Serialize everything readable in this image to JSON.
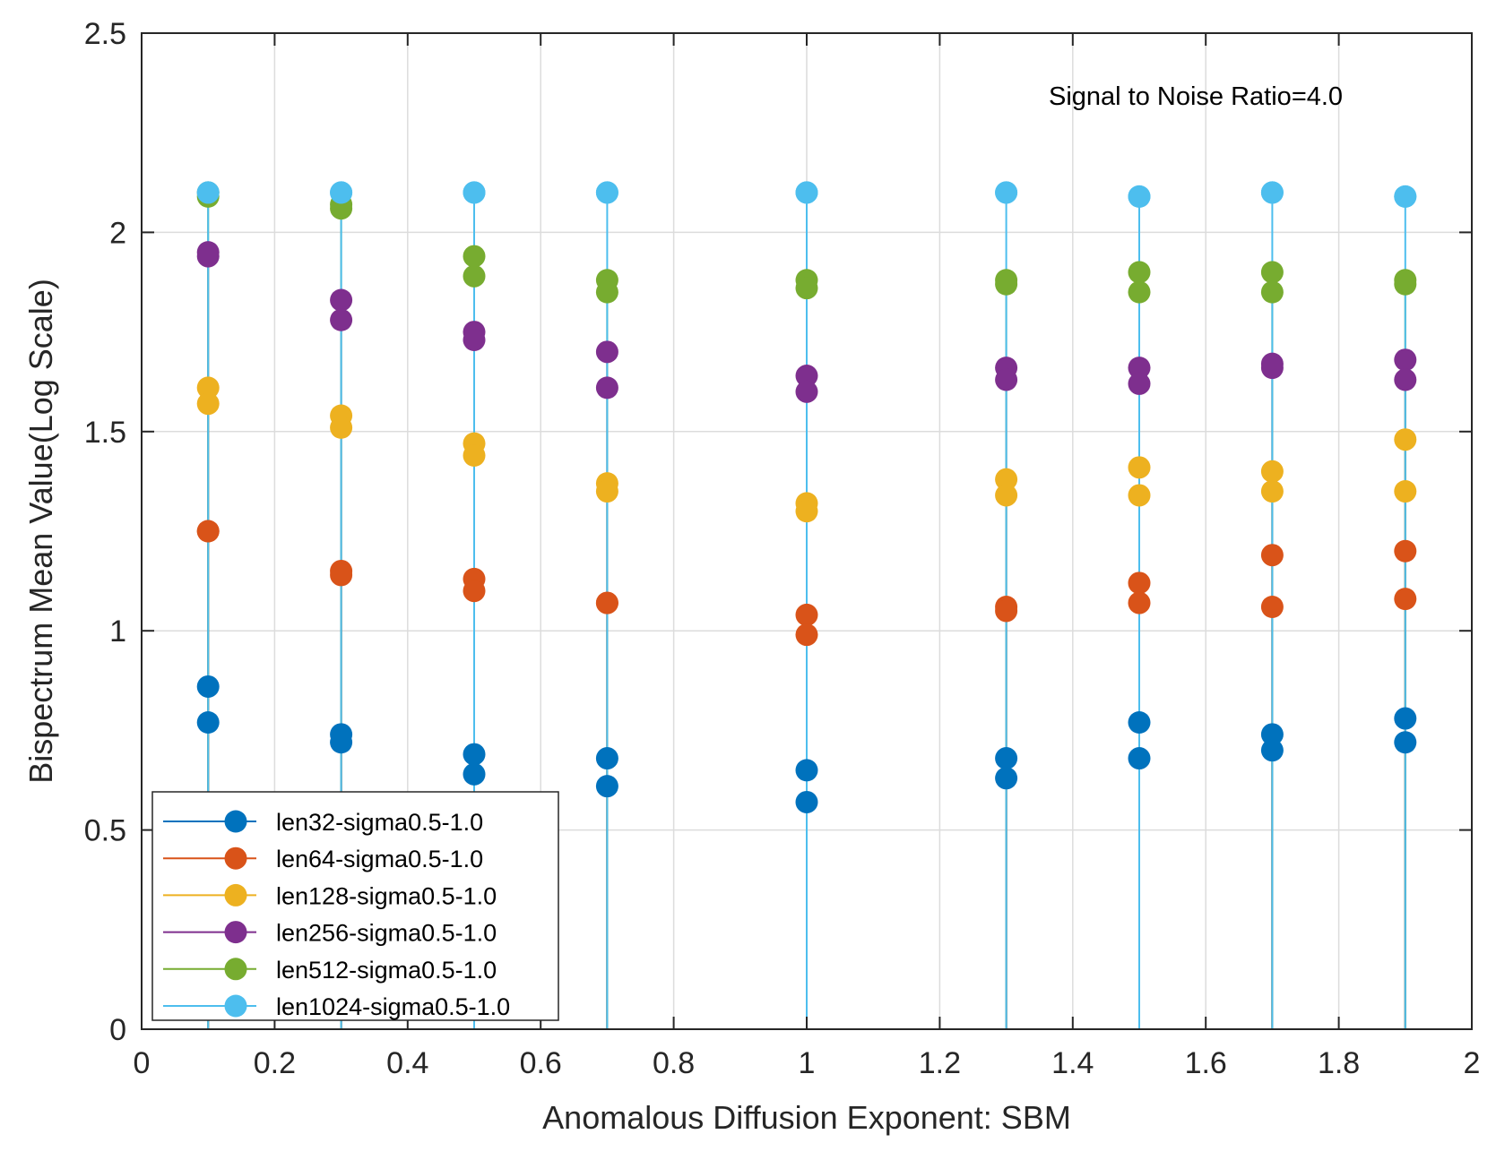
{
  "chart_data": {
    "type": "scatter",
    "style": "stem",
    "xlabel": "Anomalous Diffusion Exponent: SBM",
    "ylabel": "Bispectrum Mean Value(Log Scale)",
    "annotation": "Signal to Noise Ratio=4.0",
    "xlim": [
      0,
      2
    ],
    "ylim": [
      0,
      2.5
    ],
    "grid": true,
    "legend_position": "bottom-left",
    "x_ticks": [
      0,
      0.2,
      0.4,
      0.6,
      0.8,
      1,
      1.2,
      1.4,
      1.6,
      1.8,
      2
    ],
    "x_tick_labels": [
      "0",
      "0.2",
      "0.4",
      "0.6",
      "0.8",
      "1",
      "1.2",
      "1.4",
      "1.6",
      "1.8",
      "2"
    ],
    "y_ticks": [
      0,
      0.5,
      1,
      1.5,
      2,
      2.5
    ],
    "y_tick_labels": [
      "0",
      "0.5",
      "1",
      "1.5",
      "2",
      "2.5"
    ],
    "x": [
      0.1,
      0.3,
      0.5,
      0.7,
      1.0,
      1.3,
      1.5,
      1.7,
      1.9
    ],
    "series": [
      {
        "name": "len32-sigma0.5-1.0",
        "color": "#0072BD",
        "values_a": [
          0.86,
          0.74,
          0.69,
          0.68,
          0.65,
          0.68,
          0.77,
          0.74,
          0.78
        ],
        "values_b": [
          0.77,
          0.72,
          0.64,
          0.61,
          0.57,
          0.63,
          0.68,
          0.7,
          0.72
        ]
      },
      {
        "name": "len64-sigma0.5-1.0",
        "color": "#D95319",
        "values_a": [
          1.25,
          1.15,
          1.13,
          1.07,
          1.04,
          1.06,
          1.12,
          1.19,
          1.2
        ],
        "values_b": [
          1.25,
          1.14,
          1.1,
          1.07,
          0.99,
          1.05,
          1.07,
          1.06,
          1.08
        ]
      },
      {
        "name": "len128-sigma0.5-1.0",
        "color": "#EDB120",
        "values_a": [
          1.61,
          1.54,
          1.47,
          1.37,
          1.32,
          1.38,
          1.41,
          1.4,
          1.48
        ],
        "values_b": [
          1.57,
          1.51,
          1.44,
          1.35,
          1.3,
          1.34,
          1.34,
          1.35,
          1.35
        ]
      },
      {
        "name": "len256-sigma0.5-1.0",
        "color": "#7E2F8E",
        "values_a": [
          1.95,
          1.83,
          1.75,
          1.7,
          1.64,
          1.66,
          1.66,
          1.67,
          1.68
        ],
        "values_b": [
          1.94,
          1.78,
          1.73,
          1.61,
          1.6,
          1.63,
          1.62,
          1.66,
          1.63
        ]
      },
      {
        "name": "len512-sigma0.5-1.0",
        "color": "#77AC30",
        "values_a": [
          2.1,
          2.07,
          1.94,
          1.88,
          1.88,
          1.88,
          1.9,
          1.9,
          1.88
        ],
        "values_b": [
          2.09,
          2.06,
          1.89,
          1.85,
          1.86,
          1.87,
          1.85,
          1.85,
          1.87
        ]
      },
      {
        "name": "len1024-sigma0.5-1.0",
        "color": "#4DBEEE",
        "values_a": [
          2.1,
          2.1,
          2.1,
          2.1,
          2.1,
          2.1,
          2.09,
          2.1,
          2.09
        ],
        "values_b": [
          2.1,
          2.1,
          2.1,
          2.1,
          2.1,
          2.1,
          2.09,
          2.1,
          2.09
        ]
      }
    ]
  }
}
